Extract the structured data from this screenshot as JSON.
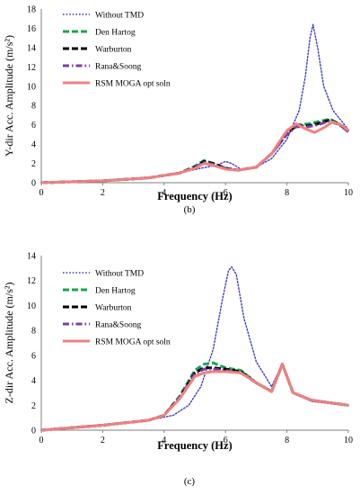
{
  "chart_data": [
    {
      "type": "line",
      "caption": "(b)",
      "xlabel": "Frequency (Hz)",
      "ylabel": "Y-dir Acc. Amplitude (m/s²)",
      "xlim": [
        0,
        10
      ],
      "ylim": [
        0,
        18
      ],
      "xticks": [
        0,
        2,
        4,
        6,
        8,
        10
      ],
      "yticks": [
        0,
        2,
        4,
        6,
        8,
        10,
        12,
        14,
        16,
        18
      ],
      "grid": false,
      "legend_position": "top-left",
      "series": [
        {
          "name": "Without TMD",
          "color": "#3a3ac8",
          "style": "dotted",
          "x": [
            0,
            2,
            3.5,
            4.5,
            5.2,
            5.7,
            6.0,
            6.2,
            6.5,
            7.0,
            7.5,
            8.0,
            8.4,
            8.6,
            8.75,
            8.85,
            9.0,
            9.2,
            9.5,
            10
          ],
          "y": [
            0,
            0.2,
            0.5,
            1.0,
            1.5,
            1.8,
            2.2,
            2.0,
            1.4,
            1.6,
            2.5,
            4.5,
            7.5,
            11.0,
            15.0,
            16.4,
            14.0,
            10.0,
            7.5,
            5.5
          ]
        },
        {
          "name": "Den Hartog",
          "color": "#1aa64a",
          "style": "dashed",
          "x": [
            0,
            2,
            3.5,
            4.5,
            5.0,
            5.3,
            5.6,
            6.0,
            6.4,
            7.0,
            7.5,
            8.0,
            8.3,
            8.7,
            9.0,
            9.4,
            9.7,
            10
          ],
          "y": [
            0,
            0.2,
            0.5,
            1.0,
            1.7,
            2.3,
            2.0,
            1.5,
            1.3,
            1.6,
            3.0,
            5.3,
            6.0,
            6.1,
            6.3,
            6.6,
            6.1,
            5.3
          ]
        },
        {
          "name": "Warburton",
          "color": "#000000",
          "style": "dashed",
          "x": [
            0,
            2,
            3.5,
            4.5,
            5.0,
            5.3,
            5.6,
            6.0,
            6.4,
            7.0,
            7.5,
            8.0,
            8.3,
            8.7,
            9.0,
            9.4,
            9.7,
            10
          ],
          "y": [
            0,
            0.2,
            0.5,
            1.0,
            1.6,
            2.2,
            2.0,
            1.5,
            1.3,
            1.6,
            3.0,
            5.1,
            5.9,
            5.9,
            6.1,
            6.5,
            6.1,
            5.3
          ]
        },
        {
          "name": "Rana&Soong",
          "color": "#7b3fa0",
          "style": "dashdot",
          "x": [
            0,
            2,
            3.5,
            4.5,
            5.0,
            5.3,
            5.6,
            6.0,
            6.4,
            7.0,
            7.5,
            8.0,
            8.3,
            8.7,
            9.0,
            9.4,
            9.7,
            10
          ],
          "y": [
            0,
            0.2,
            0.5,
            1.0,
            1.6,
            2.1,
            1.9,
            1.5,
            1.3,
            1.6,
            3.0,
            5.0,
            5.8,
            5.8,
            6.0,
            6.4,
            6.0,
            5.3
          ]
        },
        {
          "name": "RSM MOGA opt soln",
          "color": "#f08080",
          "style": "solid",
          "x": [
            0,
            2,
            3.5,
            4.5,
            5.0,
            5.3,
            5.6,
            6.0,
            6.4,
            7.0,
            7.5,
            8.0,
            8.3,
            8.6,
            8.9,
            9.2,
            9.5,
            9.8,
            10
          ],
          "y": [
            0,
            0.2,
            0.5,
            1.0,
            1.5,
            2.0,
            1.8,
            1.4,
            1.3,
            1.6,
            3.0,
            5.4,
            6.1,
            5.6,
            5.2,
            5.7,
            6.3,
            5.9,
            5.4
          ]
        }
      ]
    },
    {
      "type": "line",
      "caption": "(c)",
      "xlabel": "Frequency (Hz)",
      "ylabel": "Z-dir Acc. Amplitude (m/s²)",
      "xlim": [
        0,
        10
      ],
      "ylim": [
        0,
        14
      ],
      "xticks": [
        0,
        2,
        4,
        6,
        8,
        10
      ],
      "yticks": [
        0,
        2,
        4,
        6,
        8,
        10,
        12,
        14
      ],
      "grid": false,
      "legend_position": "top-left",
      "series": [
        {
          "name": "Without TMD",
          "color": "#3a3ac8",
          "style": "dotted",
          "x": [
            0,
            2,
            3.5,
            4.3,
            4.8,
            5.2,
            5.6,
            5.9,
            6.1,
            6.2,
            6.35,
            6.6,
            7.0,
            7.5,
            7.85,
            8.2,
            8.8,
            10
          ],
          "y": [
            0,
            0.4,
            0.8,
            1.2,
            2.0,
            3.5,
            6.5,
            10.5,
            12.8,
            13.1,
            12.5,
            9.0,
            5.5,
            3.5,
            5.3,
            3.0,
            2.3,
            2.0
          ]
        },
        {
          "name": "Den Hartog",
          "color": "#1aa64a",
          "style": "dashed",
          "x": [
            0,
            2,
            3.5,
            4.0,
            4.5,
            5.0,
            5.3,
            5.6,
            6.0,
            6.5,
            7.0,
            7.5,
            7.85,
            8.2,
            8.8,
            10
          ],
          "y": [
            0,
            0.4,
            0.8,
            1.2,
            2.7,
            4.8,
            5.3,
            5.4,
            5.0,
            4.8,
            3.8,
            3.1,
            5.3,
            3.0,
            2.4,
            2.0
          ]
        },
        {
          "name": "Warburton",
          "color": "#000000",
          "style": "dashed",
          "x": [
            0,
            2,
            3.5,
            4.0,
            4.5,
            5.0,
            5.3,
            5.6,
            6.0,
            6.5,
            7.0,
            7.5,
            7.85,
            8.2,
            8.8,
            10
          ],
          "y": [
            0,
            0.4,
            0.8,
            1.2,
            2.6,
            4.6,
            5.0,
            5.0,
            4.9,
            4.7,
            3.8,
            3.1,
            5.3,
            3.0,
            2.4,
            2.0
          ]
        },
        {
          "name": "Rana&Soong",
          "color": "#7b3fa0",
          "style": "dashdot",
          "x": [
            0,
            2,
            3.5,
            4.0,
            4.5,
            5.0,
            5.3,
            5.6,
            6.0,
            6.5,
            7.0,
            7.5,
            7.85,
            8.2,
            8.8,
            10
          ],
          "y": [
            0,
            0.4,
            0.8,
            1.2,
            2.6,
            4.5,
            4.9,
            4.9,
            4.8,
            4.6,
            3.8,
            3.1,
            5.3,
            3.0,
            2.4,
            2.0
          ]
        },
        {
          "name": "RSM MOGA opt soln",
          "color": "#f08080",
          "style": "solid",
          "x": [
            0,
            2,
            3.5,
            4.0,
            4.5,
            5.0,
            5.3,
            5.6,
            6.0,
            6.5,
            7.0,
            7.5,
            7.85,
            8.2,
            8.8,
            10
          ],
          "y": [
            0,
            0.4,
            0.8,
            1.2,
            2.5,
            4.3,
            4.6,
            4.7,
            4.7,
            4.6,
            3.8,
            3.1,
            5.3,
            3.0,
            2.4,
            2.0
          ]
        }
      ]
    }
  ]
}
